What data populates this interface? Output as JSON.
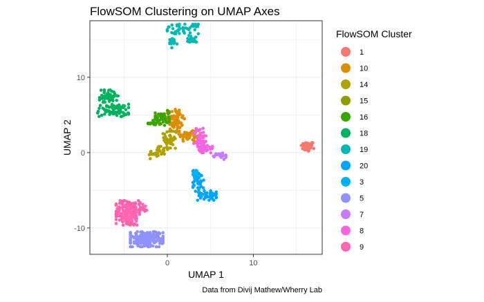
{
  "chart_data": {
    "type": "scatter",
    "title": "FlowSOM Clustering on UMAP Axes",
    "xlabel": "UMAP 1",
    "ylabel": "UMAP 2",
    "caption": "Data from Divij Mathew/Wherry Lab",
    "xlim": [
      -9,
      18
    ],
    "ylim": [
      -13.5,
      17.5
    ],
    "x_ticks": [
      0,
      10
    ],
    "y_ticks": [
      -10,
      0,
      10
    ],
    "grid": true,
    "legend": {
      "title": "FlowSOM Cluster",
      "position": "right"
    },
    "series": [
      {
        "name": "1",
        "color": "#F8766D",
        "clumps": [
          {
            "x": 16.3,
            "y": 0.8,
            "sx": 0.4,
            "sy": 0.35,
            "n": 45
          }
        ]
      },
      {
        "name": "10",
        "color": "#DB8E00",
        "clumps": [
          {
            "x": 1.0,
            "y": 4.3,
            "sx": 0.55,
            "sy": 0.85,
            "n": 70
          },
          {
            "x": 2.6,
            "y": 2.3,
            "sx": 0.7,
            "sy": 0.45,
            "n": 45
          }
        ]
      },
      {
        "name": "14",
        "color": "#AEA200",
        "clumps": [
          {
            "x": 0.3,
            "y": 1.7,
            "sx": 0.45,
            "sy": 0.8,
            "n": 45
          },
          {
            "x": -1.2,
            "y": 0.0,
            "sx": 0.5,
            "sy": 0.45,
            "n": 30
          }
        ]
      },
      {
        "name": "15",
        "color": "#8E9C00",
        "clumps": [
          {
            "x": -0.8,
            "y": 4.6,
            "sx": 0.25,
            "sy": 0.3,
            "n": 10
          }
        ]
      },
      {
        "name": "16",
        "color": "#39A600",
        "clumps": [
          {
            "x": -0.6,
            "y": 4.6,
            "sx": 0.45,
            "sy": 0.55,
            "n": 40
          },
          {
            "x": -1.6,
            "y": 3.9,
            "sx": 0.35,
            "sy": 0.2,
            "n": 12
          }
        ]
      },
      {
        "name": "18",
        "color": "#00B25D",
        "clumps": [
          {
            "x": -6.8,
            "y": 7.5,
            "sx": 0.6,
            "sy": 0.45,
            "n": 45
          },
          {
            "x": -6.3,
            "y": 5.6,
            "sx": 1.0,
            "sy": 0.45,
            "n": 70
          }
        ]
      },
      {
        "name": "19",
        "color": "#00B9B4",
        "clumps": [
          {
            "x": 1.8,
            "y": 16.4,
            "sx": 1.0,
            "sy": 0.35,
            "n": 50
          },
          {
            "x": 2.9,
            "y": 15.0,
            "sx": 0.55,
            "sy": 0.3,
            "n": 20
          },
          {
            "x": 0.6,
            "y": 14.5,
            "sx": 0.3,
            "sy": 0.35,
            "n": 15
          }
        ]
      },
      {
        "name": "20",
        "color": "#00A5FF",
        "clumps": [
          {
            "x": 3.6,
            "y": -3.8,
            "sx": 0.35,
            "sy": 0.8,
            "n": 40
          },
          {
            "x": 4.6,
            "y": -5.7,
            "sx": 0.6,
            "sy": 0.35,
            "n": 40
          }
        ]
      },
      {
        "name": "3",
        "color": "#00B0F6",
        "clumps": [
          {
            "x": 3.3,
            "y": -2.9,
            "sx": 0.2,
            "sy": 0.3,
            "n": 10
          }
        ]
      },
      {
        "name": "5",
        "color": "#8F91FF",
        "clumps": [
          {
            "x": -2.4,
            "y": -11.5,
            "sx": 1.05,
            "sy": 0.55,
            "n": 200
          }
        ]
      },
      {
        "name": "7",
        "color": "#C77CFF",
        "clumps": [
          {
            "x": 6.0,
            "y": -0.5,
            "sx": 0.45,
            "sy": 0.25,
            "n": 22
          }
        ]
      },
      {
        "name": "8",
        "color": "#F564E3",
        "clumps": [
          {
            "x": 3.8,
            "y": 1.6,
            "sx": 0.4,
            "sy": 0.9,
            "n": 60
          },
          {
            "x": 4.6,
            "y": 0.6,
            "sx": 0.35,
            "sy": 0.35,
            "n": 20
          }
        ]
      },
      {
        "name": "9",
        "color": "#FF64B0",
        "clumps": [
          {
            "x": -4.6,
            "y": -8.0,
            "sx": 0.75,
            "sy": 0.9,
            "n": 180
          },
          {
            "x": -3.2,
            "y": -7.3,
            "sx": 0.5,
            "sy": 0.4,
            "n": 25
          }
        ]
      }
    ]
  }
}
